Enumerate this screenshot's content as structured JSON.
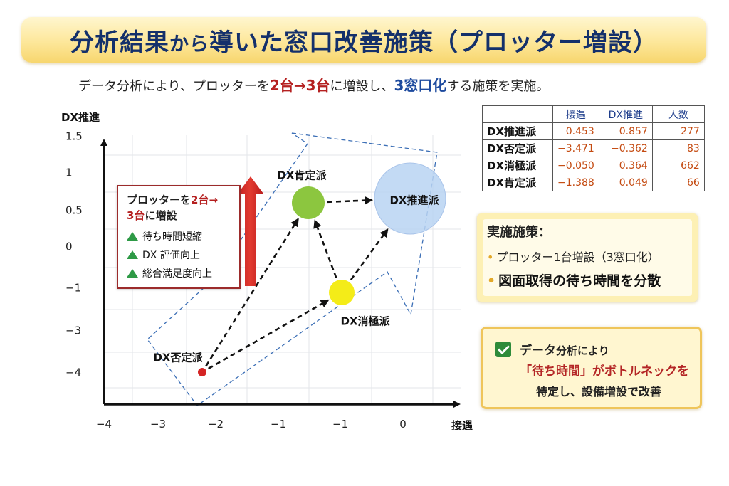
{
  "title": {
    "part1": "分析結果",
    "part2": "から",
    "part3": "導いた窓口改善施策（プロッター増設）"
  },
  "subtitle": {
    "pre": "データ分析により、プロッターを",
    "from_to": "2台→3台",
    "mid": "に増設し、",
    "window": "3窓口化",
    "post": "する施策を実施。"
  },
  "callout": {
    "line1_pre": "プロッターを",
    "line1_red": "2台→",
    "line2_red": "3台",
    "line2_post": "に増設",
    "items": [
      "待ち時間短縮",
      "DX 評価向上",
      "総合満足度向上"
    ]
  },
  "table": {
    "headers": [
      "接遇",
      "DX推進",
      "人数"
    ],
    "rows": [
      {
        "name": "DX推進派",
        "a": "0.453",
        "b": "0.857",
        "n": "277"
      },
      {
        "name": "DX否定派",
        "a": "−3.471",
        "b": "−0.362",
        "n": "83"
      },
      {
        "name": "DX消極派",
        "a": "−0.050",
        "b": "0.364",
        "n": "662"
      },
      {
        "name": "DX肯定派",
        "a": "−1.388",
        "b": "0.049",
        "n": "66"
      }
    ]
  },
  "measures": {
    "heading": "実施施策：",
    "item1": "プロッター1台増設（3窓口化）",
    "item2": "図面取得の待ち時間を分散"
  },
  "finding": {
    "line1_bold": "データ",
    "line1_rest": "分析により",
    "line2": "「待ち時間」がボトルネックを",
    "line3": "特定し、設備増設で改善"
  },
  "chart_data": {
    "type": "scatter",
    "ylabel": "DX推進",
    "xlabel": "接遇",
    "x_ticks": [
      "−4",
      "−3",
      "−2",
      "−1",
      "−1",
      "0"
    ],
    "y_ticks": [
      "1.5",
      "1",
      "0.5",
      "0",
      "−1",
      "−3",
      "−4"
    ],
    "points": [
      {
        "name": "DX否定派",
        "color": "#d42424",
        "size": "small"
      },
      {
        "name": "DX消極派",
        "color": "#f4ec18",
        "size": "medium"
      },
      {
        "name": "DX肯定派",
        "color": "#8cc63f",
        "size": "medium"
      },
      {
        "name": "DX推進派",
        "color": "#b9d3f2",
        "size": "large"
      }
    ],
    "arrows": [
      [
        "DX否定派",
        "DX肯定派"
      ],
      [
        "DX否定派",
        "DX消極派"
      ],
      [
        "DX消極派",
        "DX肯定派"
      ],
      [
        "DX肯定派",
        "DX推進派"
      ],
      [
        "DX消極派",
        "DX推進派"
      ]
    ],
    "grid": true
  }
}
